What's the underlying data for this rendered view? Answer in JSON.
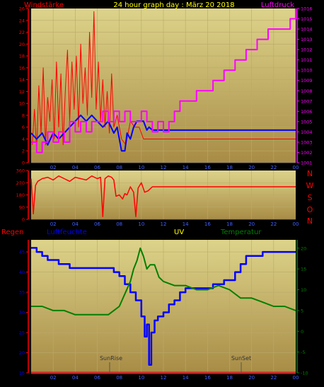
{
  "header": {
    "wind_label": "Windstärke",
    "title": "24 hour graph day : März 20 2018",
    "pressure_label": "Luftdruck"
  },
  "directions": [
    "N",
    "W",
    "S",
    "O",
    "N"
  ],
  "lower_labels": {
    "rain": "Regen",
    "humidity": "Luftfeuchte",
    "uv": "UV",
    "temperature": "Temperatur",
    "sunrise": "SunRise",
    "sunset": "SunSet"
  },
  "colors": {
    "wind": "#ff0000",
    "wind_avg": "#0000ff",
    "pressure": "#ff00ff",
    "direction": "#ff0000",
    "humidity": "#0000ff",
    "temperature": "#008000",
    "rain": "#ff0000",
    "uv": "#ffff00",
    "sun_marker": "#555555"
  },
  "chart_data": [
    {
      "type": "line",
      "name": "wind-pressure",
      "x_ticks": [
        "02",
        "04",
        "06",
        "08",
        "10",
        "12",
        "14",
        "16",
        "18",
        "20",
        "22",
        "00"
      ],
      "left_axis": {
        "label": "Windstärke",
        "ticks": [
          0,
          2,
          4,
          6,
          8,
          10,
          12,
          14,
          16,
          18,
          20,
          22,
          24,
          26
        ],
        "ylim": [
          0,
          26
        ]
      },
      "right_axis": {
        "label": "Luftdruck",
        "ticks": [
          1001,
          1002,
          1003,
          1004,
          1005,
          1006,
          1007,
          1008,
          1009,
          1010,
          1011,
          1012,
          1013,
          1014,
          1015,
          1016
        ],
        "ylim": [
          1001,
          1016
        ]
      },
      "series": [
        {
          "name": "Windstärke",
          "axis": "left",
          "points": [
            [
              0.1,
              3
            ],
            [
              0.3,
              9
            ],
            [
              0.5,
              2
            ],
            [
              0.7,
              13
            ],
            [
              0.9,
              5
            ],
            [
              1.1,
              16
            ],
            [
              1.3,
              3
            ],
            [
              1.5,
              11
            ],
            [
              1.7,
              7
            ],
            [
              1.9,
              14
            ],
            [
              2.1,
              4
            ],
            [
              2.3,
              17
            ],
            [
              2.5,
              6
            ],
            [
              2.7,
              15
            ],
            [
              2.9,
              3
            ],
            [
              3.1,
              12
            ],
            [
              3.3,
              19
            ],
            [
              3.5,
              7
            ],
            [
              3.7,
              17
            ],
            [
              3.9,
              9
            ],
            [
              4.1,
              18
            ],
            [
              4.3,
              6
            ],
            [
              4.5,
              20
            ],
            [
              4.7,
              10
            ],
            [
              4.9,
              16
            ],
            [
              5.1,
              8
            ],
            [
              5.3,
              22
            ],
            [
              5.5,
              11
            ],
            [
              5.7,
              25.5
            ],
            [
              5.9,
              9
            ],
            [
              6.1,
              17
            ],
            [
              6.3,
              7
            ],
            [
              6.5,
              14
            ],
            [
              6.7,
              6
            ],
            [
              6.9,
              12
            ],
            [
              7.1,
              5
            ],
            [
              7.3,
              15
            ],
            [
              7.5,
              6
            ],
            [
              7.8,
              8
            ],
            [
              8.2,
              4
            ],
            [
              8.6,
              3
            ],
            [
              9.0,
              7
            ],
            [
              9.4,
              6
            ],
            [
              9.8,
              6
            ],
            [
              10.2,
              4
            ],
            [
              10.6,
              4
            ],
            [
              24,
              4
            ]
          ]
        },
        {
          "name": "Wind Mittel",
          "axis": "left",
          "points": [
            [
              0,
              5
            ],
            [
              0.5,
              4
            ],
            [
              1,
              5
            ],
            [
              1.5,
              3
            ],
            [
              2,
              5
            ],
            [
              2.5,
              4
            ],
            [
              3,
              5
            ],
            [
              3.5,
              6
            ],
            [
              4,
              7
            ],
            [
              4.5,
              8
            ],
            [
              5,
              7
            ],
            [
              5.5,
              8
            ],
            [
              6,
              7
            ],
            [
              6.5,
              6
            ],
            [
              7,
              7
            ],
            [
              7.5,
              5
            ],
            [
              7.8,
              6
            ],
            [
              8.2,
              2
            ],
            [
              8.5,
              2
            ],
            [
              8.7,
              5
            ],
            [
              9,
              4
            ],
            [
              9.3,
              6
            ],
            [
              9.6,
              7
            ],
            [
              10.2,
              7
            ],
            [
              10.5,
              5.5
            ],
            [
              10.7,
              6
            ],
            [
              11,
              5.5
            ],
            [
              24,
              5.5
            ]
          ]
        },
        {
          "name": "Luftdruck",
          "axis": "right",
          "points": [
            [
              0,
              1003
            ],
            [
              0.5,
              1002
            ],
            [
              1,
              1003
            ],
            [
              1.5,
              1004
            ],
            [
              2,
              1003
            ],
            [
              2.5,
              1004
            ],
            [
              3,
              1003
            ],
            [
              3.5,
              1005
            ],
            [
              4,
              1004
            ],
            [
              4.5,
              1005
            ],
            [
              5,
              1004
            ],
            [
              5.5,
              1005
            ],
            [
              6,
              1005
            ],
            [
              6.5,
              1006
            ],
            [
              7,
              1005
            ],
            [
              7.5,
              1006
            ],
            [
              8,
              1005
            ],
            [
              8.5,
              1006
            ],
            [
              9,
              1005
            ],
            [
              9.5,
              1005
            ],
            [
              10,
              1006
            ],
            [
              10.5,
              1005
            ],
            [
              11,
              1004
            ],
            [
              11.5,
              1005
            ],
            [
              12,
              1004
            ],
            [
              12.5,
              1005
            ],
            [
              13,
              1006
            ],
            [
              13.5,
              1007
            ],
            [
              14,
              1007
            ],
            [
              15,
              1008
            ],
            [
              16,
              1008
            ],
            [
              16.5,
              1009
            ],
            [
              17,
              1009
            ],
            [
              17.5,
              1010
            ],
            [
              18,
              1010
            ],
            [
              18.5,
              1011
            ],
            [
              19,
              1011
            ],
            [
              19.5,
              1012
            ],
            [
              20,
              1012
            ],
            [
              20.5,
              1013
            ],
            [
              21,
              1013
            ],
            [
              21.5,
              1014
            ],
            [
              22,
              1014
            ],
            [
              22.5,
              1014
            ],
            [
              23,
              1014
            ],
            [
              23.5,
              1015
            ],
            [
              24,
              1016
            ]
          ]
        }
      ]
    },
    {
      "type": "line",
      "name": "wind-direction",
      "x_ticks": [
        "02",
        "04",
        "06",
        "08",
        "10",
        "12",
        "14",
        "16",
        "18",
        "20",
        "22",
        "00"
      ],
      "left_axis": {
        "ticks": [
          0,
          90,
          180,
          270,
          360
        ],
        "ylim": [
          0,
          360
        ]
      },
      "series": [
        {
          "name": "Windrichtung",
          "axis": "left",
          "points": [
            [
              0,
              300
            ],
            [
              0.2,
              40
            ],
            [
              0.4,
              250
            ],
            [
              0.6,
              280
            ],
            [
              1,
              300
            ],
            [
              1.5,
              310
            ],
            [
              2,
              290
            ],
            [
              2.5,
              320
            ],
            [
              3,
              300
            ],
            [
              3.5,
              280
            ],
            [
              4,
              310
            ],
            [
              4.5,
              300
            ],
            [
              5,
              290
            ],
            [
              5.5,
              320
            ],
            [
              6,
              300
            ],
            [
              6.3,
              310
            ],
            [
              6.5,
              20
            ],
            [
              6.7,
              300
            ],
            [
              7,
              320
            ],
            [
              7.3,
              310
            ],
            [
              7.5,
              290
            ],
            [
              7.7,
              170
            ],
            [
              8,
              180
            ],
            [
              8.3,
              150
            ],
            [
              8.5,
              190
            ],
            [
              8.7,
              180
            ],
            [
              9,
              240
            ],
            [
              9.3,
              200
            ],
            [
              9.5,
              20
            ],
            [
              9.7,
              230
            ],
            [
              10,
              270
            ],
            [
              10.3,
              200
            ],
            [
              10.6,
              210
            ],
            [
              11,
              240
            ],
            [
              24,
              240
            ]
          ]
        }
      ]
    },
    {
      "type": "line",
      "name": "humidity-temperature",
      "x_ticks": [
        "02",
        "04",
        "06",
        "08",
        "10",
        "12",
        "14",
        "16",
        "18",
        "20",
        "22",
        "00"
      ],
      "left_axis": {
        "label": "Luftfeuchte",
        "ticks": [
          15,
          20,
          25,
          30,
          35,
          40,
          45
        ],
        "ylim": [
          15,
          48
        ]
      },
      "right_axis": {
        "label": "Temperatur",
        "ticks": [
          -10,
          -5,
          0,
          5,
          10,
          15,
          20
        ],
        "ylim": [
          -10,
          22
        ]
      },
      "series": [
        {
          "name": "Luftfeuchte",
          "axis": "left",
          "points": [
            [
              0,
              46
            ],
            [
              0.5,
              45
            ],
            [
              1,
              44
            ],
            [
              1.5,
              43
            ],
            [
              2,
              43
            ],
            [
              2.5,
              42
            ],
            [
              3,
              42
            ],
            [
              3.5,
              41
            ],
            [
              4,
              41
            ],
            [
              4.5,
              41
            ],
            [
              5,
              41
            ],
            [
              5.5,
              41
            ],
            [
              6,
              41
            ],
            [
              6.5,
              41
            ],
            [
              7,
              41
            ],
            [
              7.5,
              40
            ],
            [
              8,
              39
            ],
            [
              8.5,
              37
            ],
            [
              9,
              35
            ],
            [
              9.5,
              33
            ],
            [
              10,
              29
            ],
            [
              10.3,
              24
            ],
            [
              10.5,
              27
            ],
            [
              10.7,
              17
            ],
            [
              10.9,
              25
            ],
            [
              11.2,
              28
            ],
            [
              11.5,
              29
            ],
            [
              12,
              30
            ],
            [
              12.5,
              32
            ],
            [
              13,
              33
            ],
            [
              13.5,
              35
            ],
            [
              14,
              36
            ],
            [
              14.5,
              36
            ],
            [
              15,
              36
            ],
            [
              15.5,
              36
            ],
            [
              16,
              36
            ],
            [
              16.5,
              37
            ],
            [
              17,
              37
            ],
            [
              17.5,
              38
            ],
            [
              18,
              38
            ],
            [
              18.5,
              40
            ],
            [
              19,
              42
            ],
            [
              19.5,
              44
            ],
            [
              20,
              44
            ],
            [
              20.5,
              44
            ],
            [
              21,
              45
            ],
            [
              21.5,
              45
            ],
            [
              22,
              45
            ],
            [
              22.5,
              45
            ],
            [
              23,
              45
            ],
            [
              23.5,
              45
            ],
            [
              24,
              45
            ]
          ]
        },
        {
          "name": "Temperatur",
          "axis": "right",
          "points": [
            [
              0,
              6
            ],
            [
              1,
              6
            ],
            [
              2,
              5
            ],
            [
              3,
              5
            ],
            [
              4,
              4
            ],
            [
              5,
              4
            ],
            [
              6,
              4
            ],
            [
              7,
              4
            ],
            [
              7.5,
              5
            ],
            [
              8,
              6
            ],
            [
              8.5,
              9
            ],
            [
              9,
              12
            ],
            [
              9.3,
              15
            ],
            [
              9.6,
              17
            ],
            [
              9.9,
              20
            ],
            [
              10.2,
              18
            ],
            [
              10.5,
              15
            ],
            [
              10.8,
              16
            ],
            [
              11.2,
              16
            ],
            [
              11.6,
              13
            ],
            [
              12,
              12
            ],
            [
              13,
              11
            ],
            [
              14,
              11
            ],
            [
              15,
              10
            ],
            [
              16,
              10
            ],
            [
              17,
              11
            ],
            [
              18,
              10
            ],
            [
              19,
              8
            ],
            [
              20,
              8
            ],
            [
              21,
              7
            ],
            [
              22,
              6
            ],
            [
              23,
              6
            ],
            [
              24,
              5
            ]
          ]
        },
        {
          "name": "Regen",
          "axis": "left",
          "points": [
            [
              0,
              15
            ],
            [
              24,
              15
            ]
          ]
        }
      ]
    }
  ]
}
